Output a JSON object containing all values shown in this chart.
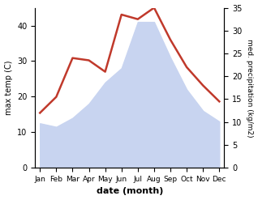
{
  "months": [
    "Jan",
    "Feb",
    "Mar",
    "Apr",
    "May",
    "Jun",
    "Jul",
    "Aug",
    "Sep",
    "Oct",
    "Nov",
    "Dec"
  ],
  "max_temp": [
    12.5,
    11.5,
    14.0,
    18.0,
    24.0,
    28.0,
    41.0,
    41.0,
    31.0,
    22.0,
    16.0,
    13.0
  ],
  "precipitation": [
    12.0,
    15.5,
    24.0,
    23.5,
    21.0,
    33.5,
    32.5,
    35.0,
    28.0,
    22.0,
    18.0,
    14.5
  ],
  "temp_color": "#c0392b",
  "precip_fill_color": "#c8d4f0",
  "left_ylabel": "max temp (C)",
  "right_ylabel": "med. precipitation (kg/m2)",
  "xlabel": "date (month)",
  "ylim_left": [
    0,
    45
  ],
  "ylim_right": [
    0,
    35
  ],
  "yticks_left": [
    0,
    10,
    20,
    30,
    40
  ],
  "yticks_right": [
    0,
    5,
    10,
    15,
    20,
    25,
    30,
    35
  ],
  "bg_color": "#ffffff"
}
